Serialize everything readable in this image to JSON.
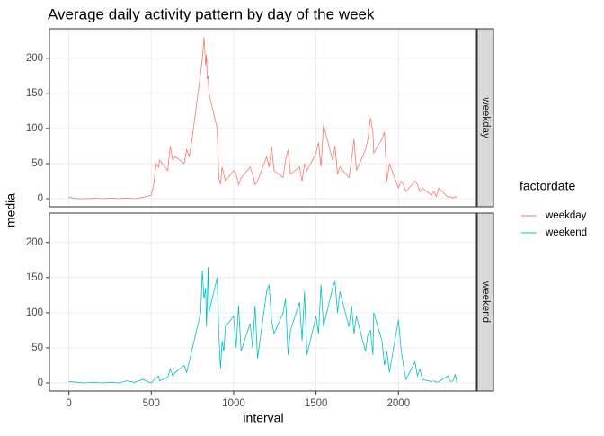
{
  "chart_data": {
    "type": "line",
    "title": "Average daily activity pattern by day of the week",
    "x_label": "interval",
    "y_label": "media",
    "legend_title": "factordate",
    "facet": true,
    "grid": true,
    "x": [
      0,
      50,
      100,
      150,
      200,
      250,
      300,
      350,
      400,
      450,
      500,
      515,
      530,
      545,
      550,
      600,
      615,
      630,
      645,
      700,
      715,
      730,
      745,
      800,
      810,
      820,
      830,
      835,
      840,
      845,
      850,
      900,
      910,
      920,
      930,
      940,
      950,
      1000,
      1015,
      1030,
      1045,
      1100,
      1115,
      1130,
      1145,
      1200,
      1215,
      1230,
      1245,
      1300,
      1315,
      1330,
      1345,
      1400,
      1415,
      1430,
      1445,
      1500,
      1515,
      1530,
      1545,
      1600,
      1615,
      1630,
      1645,
      1700,
      1715,
      1730,
      1745,
      1800,
      1815,
      1830,
      1845,
      1850,
      1900,
      1915,
      1930,
      1945,
      2000,
      2015,
      2030,
      2045,
      2100,
      2115,
      2130,
      2145,
      2200,
      2215,
      2230,
      2245,
      2300,
      2315,
      2330,
      2345,
      2355
    ],
    "series": [
      {
        "name": "weekday",
        "color": "#F8766D",
        "values": [
          2,
          0,
          0,
          1,
          0,
          1,
          0,
          1,
          0,
          2,
          5,
          20,
          50,
          45,
          55,
          40,
          75,
          55,
          60,
          50,
          70,
          60,
          80,
          180,
          200,
          230,
          190,
          205,
          170,
          175,
          150,
          100,
          30,
          20,
          45,
          35,
          25,
          40,
          35,
          20,
          30,
          45,
          35,
          20,
          25,
          60,
          45,
          75,
          40,
          30,
          55,
          70,
          35,
          45,
          25,
          50,
          40,
          65,
          80,
          45,
          105,
          55,
          75,
          35,
          45,
          30,
          55,
          85,
          40,
          70,
          85,
          115,
          95,
          65,
          85,
          95,
          25,
          50,
          15,
          25,
          20,
          10,
          25,
          20,
          10,
          15,
          5,
          10,
          3,
          15,
          2,
          3,
          1,
          3,
          1
        ]
      },
      {
        "name": "weekend",
        "color": "#00BFC4",
        "values": [
          2,
          1,
          0,
          1,
          0,
          1,
          0,
          3,
          1,
          5,
          0,
          4,
          7,
          10,
          3,
          8,
          20,
          10,
          15,
          25,
          15,
          30,
          45,
          100,
          160,
          120,
          135,
          80,
          120,
          165,
          100,
          150,
          70,
          20,
          60,
          45,
          80,
          95,
          50,
          110,
          45,
          85,
          50,
          110,
          35,
          130,
          140,
          90,
          70,
          100,
          120,
          40,
          75,
          115,
          60,
          130,
          40,
          95,
          70,
          140,
          80,
          135,
          145,
          100,
          130,
          80,
          110,
          70,
          95,
          45,
          70,
          75,
          40,
          100,
          60,
          25,
          45,
          15,
          90,
          50,
          25,
          5,
          30,
          10,
          20,
          5,
          2,
          3,
          1,
          2,
          10,
          2,
          3,
          12,
          1
        ]
      }
    ],
    "xlim": [
      -117.75,
      2472.75
    ],
    "xticks": [
      0,
      500,
      1000,
      1500,
      2000
    ],
    "ylim": [
      -11.5,
      241.9
    ],
    "yticks": [
      0,
      50,
      100,
      150,
      200
    ]
  }
}
